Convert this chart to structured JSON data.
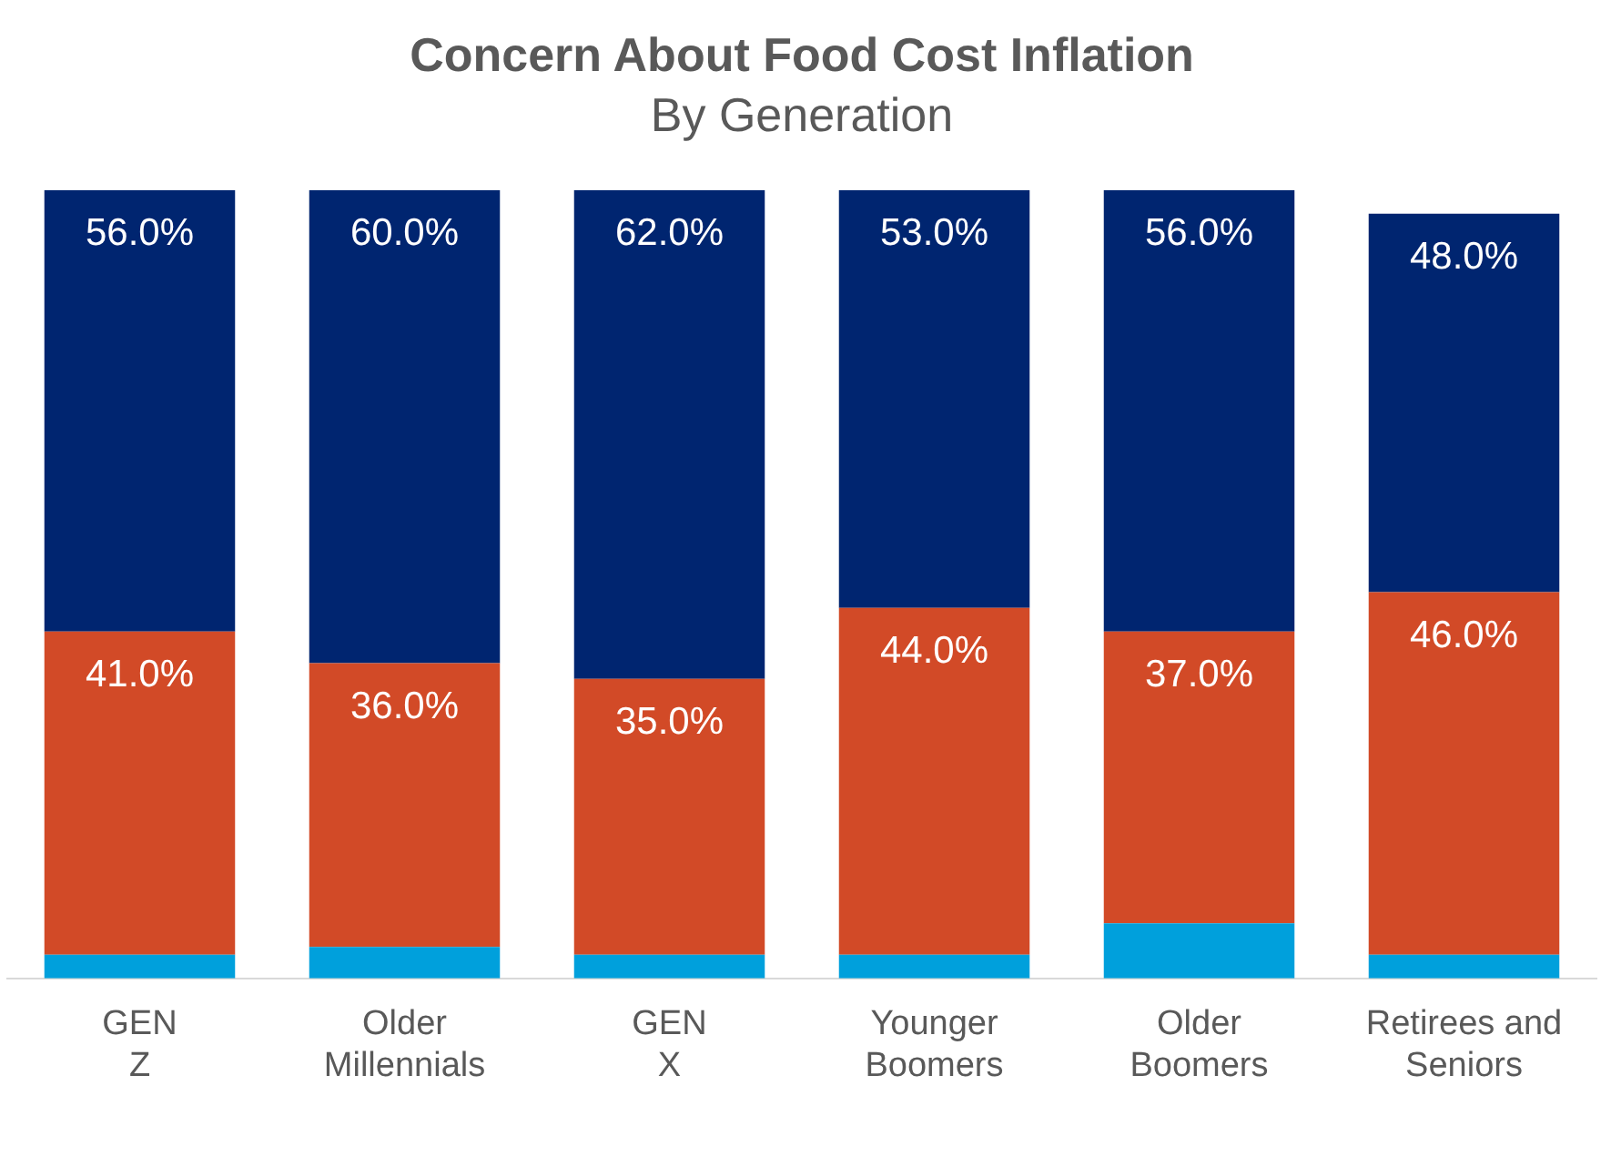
{
  "chart_data": {
    "type": "bar",
    "title": "Concern About Food Cost Inflation",
    "subtitle": "By Generation",
    "stacked": true,
    "tick_labels": "x",
    "grid": false,
    "legend": false,
    "categories": [
      "GEN Z",
      "Older Millennials",
      "GEN X",
      "Younger Boomers",
      "Older Boomers",
      "Retirees and Seniors"
    ],
    "series": [
      {
        "color": "#00a0dc",
        "values": [
          3,
          4,
          3,
          3,
          7,
          3
        ]
      },
      {
        "color": "#d24a27",
        "values": [
          41,
          36,
          35,
          44,
          37,
          46
        ],
        "value_labels": [
          "41.0%",
          "36.0%",
          "35.0%",
          "44.0%",
          "37.0%",
          "46.0%"
        ]
      },
      {
        "color": "#002570",
        "values": [
          56,
          60,
          62,
          53,
          56,
          48
        ],
        "value_labels": [
          "56.0%",
          "60.0%",
          "62.0%",
          "53.0%",
          "56.0%",
          "48.0%"
        ]
      }
    ]
  }
}
